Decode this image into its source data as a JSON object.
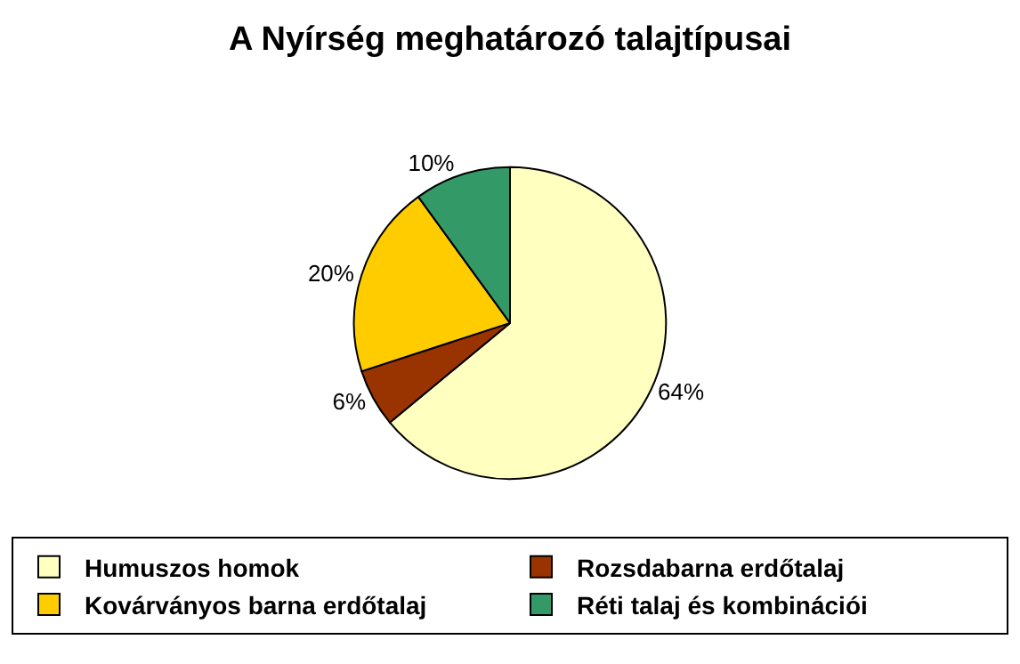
{
  "chart_data": {
    "type": "pie",
    "title": "A Nyírség meghatározó talajtípusai",
    "categories": [
      "Humuszos homok",
      "Rozsdabarna erdőtalaj",
      "Kovárványos barna erdőtalaj",
      "Réti talaj és kombinációi"
    ],
    "values": [
      64,
      6,
      20,
      10
    ],
    "colors": [
      "#ffffc0",
      "#993300",
      "#ffcc00",
      "#339966"
    ],
    "value_labels": [
      "64%",
      "6%",
      "20%",
      "10%"
    ],
    "legend": "bottom"
  }
}
